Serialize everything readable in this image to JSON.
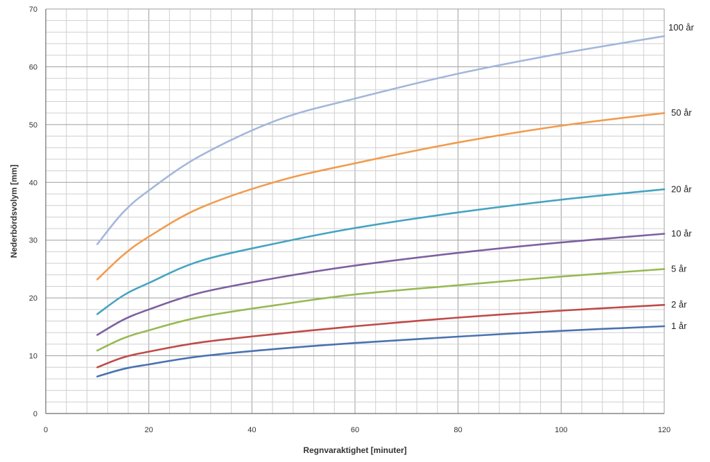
{
  "chart_data": {
    "type": "line",
    "title": "",
    "xlabel": "Regnvaraktighet [minuter]",
    "ylabel": "Nederbördsvolym [mm]",
    "xlim": [
      0,
      120
    ],
    "ylim": [
      0,
      70
    ],
    "x_ticks": [
      "0",
      "20",
      "40",
      "60",
      "80",
      "100",
      "120"
    ],
    "y_ticks": [
      "0",
      "10",
      "20",
      "30",
      "40",
      "50",
      "60",
      "70"
    ],
    "grid": true,
    "legend": "right",
    "x": [
      10,
      15,
      20,
      30,
      45,
      60,
      80,
      100,
      120
    ],
    "series": [
      {
        "name": "1 år",
        "color": "#4a72b0",
        "values": [
          6.4,
          7.7,
          8.5,
          9.9,
          11.2,
          12.2,
          13.3,
          14.3,
          15.1
        ]
      },
      {
        "name": "2 år",
        "color": "#be4b48",
        "values": [
          8.0,
          9.7,
          10.7,
          12.3,
          13.8,
          15.1,
          16.6,
          17.8,
          18.8
        ]
      },
      {
        "name": "5 år",
        "color": "#98b954",
        "values": [
          10.9,
          13.0,
          14.4,
          16.7,
          18.8,
          20.6,
          22.2,
          23.7,
          25.0
        ]
      },
      {
        "name": "10 år",
        "color": "#7d60a0",
        "values": [
          13.6,
          16.2,
          18.0,
          20.9,
          23.5,
          25.6,
          27.8,
          29.6,
          31.1
        ]
      },
      {
        "name": "20 år",
        "color": "#46a4c0",
        "values": [
          17.2,
          20.4,
          22.6,
          26.4,
          29.5,
          32.1,
          34.8,
          37.0,
          38.8
        ]
      },
      {
        "name": "50 år",
        "color": "#f29b4e",
        "values": [
          23.2,
          27.4,
          30.6,
          35.6,
          40.2,
          43.3,
          46.9,
          49.8,
          52.0
        ]
      },
      {
        "name": "100 år",
        "color": "#a3b7dc",
        "values": [
          29.3,
          34.8,
          38.6,
          44.6,
          50.8,
          54.5,
          58.8,
          62.3,
          65.3
        ]
      }
    ]
  }
}
